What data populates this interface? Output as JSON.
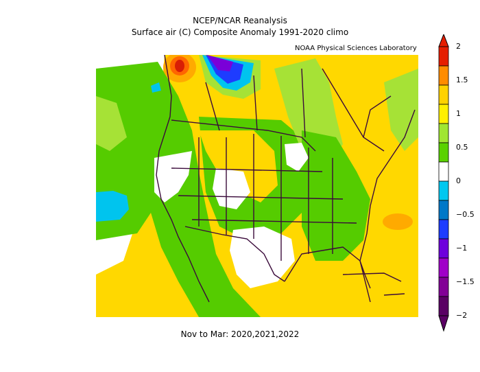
{
  "header": {
    "line1": "NCEP/NCAR Reanalysis",
    "line2": "Surface air (C) Composite Anomaly 1991-2020 climo",
    "credit": "NOAA Physical Sciences Laboratory"
  },
  "footer": {
    "period": "Nov to Mar: 2020,2021,2022"
  },
  "colorbar": {
    "ticks": [
      "2",
      "1.5",
      "1",
      "0.5",
      "0",
      "-0.5",
      "-1",
      "-1.5",
      "-2"
    ],
    "colors": [
      "#e51e00",
      "#ff8c00",
      "#ffd200",
      "#fff000",
      "#a0e632",
      "#5ad200",
      "#ffffff",
      "#00c8f0",
      "#0078c8",
      "#1e3cff",
      "#6e00dc",
      "#a000c8",
      "#820096",
      "#5a0064"
    ]
  },
  "map": {
    "region": "North America",
    "overlay": "US state and Canadian province boundaries"
  }
}
